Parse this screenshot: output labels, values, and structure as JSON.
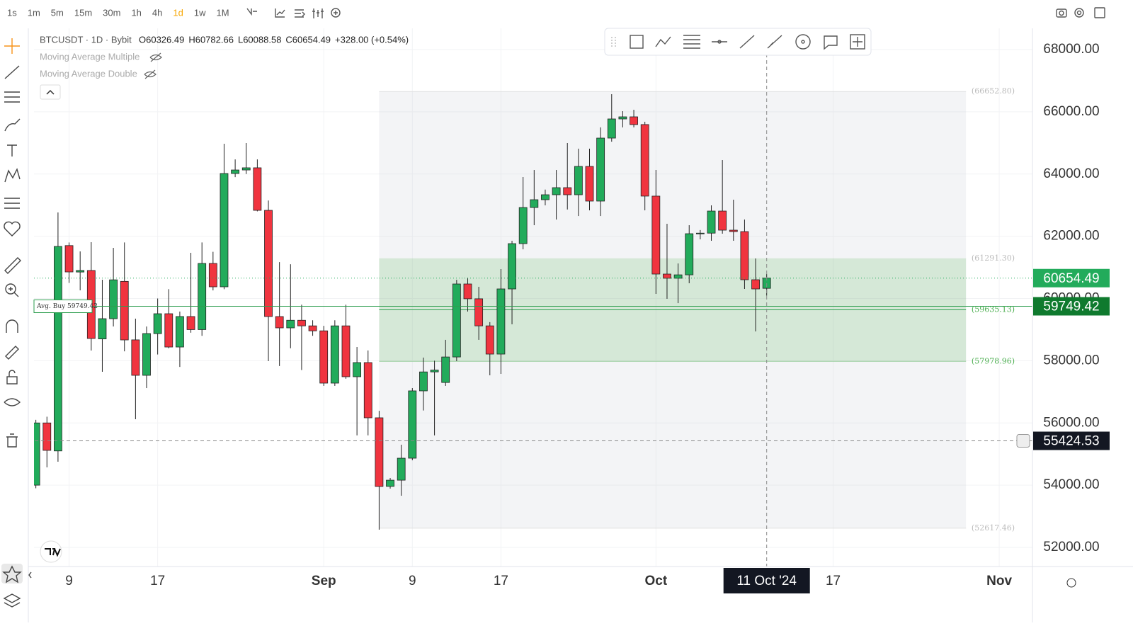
{
  "toolbar": {
    "intervals": [
      "1s",
      "1m",
      "5m",
      "15m",
      "30m",
      "1h",
      "4h",
      "1d",
      "1w",
      "1M"
    ],
    "active": "1d"
  },
  "legend": {
    "symbol": "BTCUSDT · 1D · Bybit",
    "ohlc": [
      "O60326.49",
      "H60782.66",
      "L60088.58",
      "C60654.49",
      "+328.00 (+0.54%)"
    ],
    "indicators": [
      "Moving Average Multiple",
      "Moving Average Double"
    ]
  },
  "chart_data": {
    "type": "candlestick",
    "up_color": "#22ab5b",
    "down_color": "#f0343f",
    "x": [
      "2024-08-06",
      "2024-08-07",
      "2024-08-08",
      "2024-08-09",
      "2024-08-10",
      "2024-08-11",
      "2024-08-12",
      "2024-08-13",
      "2024-08-14",
      "2024-08-15",
      "2024-08-16",
      "2024-08-17",
      "2024-08-18",
      "2024-08-19",
      "2024-08-20",
      "2024-08-21",
      "2024-08-22",
      "2024-08-23",
      "2024-08-24",
      "2024-08-25",
      "2024-08-26",
      "2024-08-27",
      "2024-08-28",
      "2024-08-29",
      "2024-08-30",
      "2024-08-31",
      "2024-09-01",
      "2024-09-02",
      "2024-09-03",
      "2024-09-04",
      "2024-09-05",
      "2024-09-06",
      "2024-09-07",
      "2024-09-08",
      "2024-09-09",
      "2024-09-10",
      "2024-09-11",
      "2024-09-12",
      "2024-09-13",
      "2024-09-14",
      "2024-09-15",
      "2024-09-16",
      "2024-09-17",
      "2024-09-18",
      "2024-09-19",
      "2024-09-20",
      "2024-09-21",
      "2024-09-22",
      "2024-09-23",
      "2024-09-24",
      "2024-09-25",
      "2024-09-26",
      "2024-09-27",
      "2024-09-28",
      "2024-09-29",
      "2024-09-30",
      "2024-10-01",
      "2024-10-02",
      "2024-10-03",
      "2024-10-04",
      "2024-10-05",
      "2024-10-06",
      "2024-10-07",
      "2024-10-08",
      "2024-10-09",
      "2024-10-10",
      "2024-10-11"
    ],
    "open": [
      54000,
      56000,
      55100,
      61700,
      60850,
      60900,
      58700,
      59350,
      60550,
      58670,
      57530,
      58870,
      59510,
      58440,
      59420,
      59000,
      61126,
      60375,
      64017,
      64130,
      64200,
      62833,
      59419,
      59055,
      59300,
      59120,
      58960,
      57280,
      59120,
      57485,
      57940,
      56165,
      53960,
      54160,
      54867,
      57030,
      57640,
      57300,
      58120,
      60466,
      59990,
      59120,
      58213,
      60307,
      61763,
      62924,
      63175,
      63334,
      63562,
      63334,
      64245,
      63130,
      65155,
      65770,
      65838,
      65590,
      63290,
      60785,
      60650,
      60760,
      62080,
      62100,
      62810,
      62196,
      62150,
      60603,
      60326.49
    ],
    "high": [
      56100,
      56200,
      62765,
      61800,
      61513,
      61809,
      60603,
      61627,
      61800,
      59350,
      59100,
      60000,
      60300,
      59580,
      61468,
      61800,
      61500,
      64973,
      64470,
      64996,
      64470,
      63150,
      61170,
      61100,
      59800,
      59300,
      59120,
      59300,
      59800,
      58440,
      58330,
      56390,
      54230,
      55300,
      57120,
      58100,
      58000,
      58670,
      60600,
      60670,
      60375,
      59240,
      60944,
      61855,
      63903,
      64130,
      63500,
      64130,
      64996,
      64815,
      64815,
      65500,
      66566,
      66020,
      66066,
      65680,
      64130,
      62400,
      61126,
      62355,
      62200,
      62993,
      64449,
      63175,
      62538,
      61286,
      60782.66
    ],
    "low": [
      53900,
      54571,
      54754,
      60500,
      60262,
      58327,
      57644,
      59100,
      58300,
      56119,
      57120,
      58200,
      58400,
      57800,
      58900,
      58800,
      60260,
      60300,
      63900,
      64000,
      62800,
      57985,
      57830,
      58400,
      57700,
      58800,
      57190,
      57190,
      57420,
      55600,
      55600,
      52569,
      53890,
      53660,
      54800,
      56400,
      55600,
      57190,
      57985,
      59580,
      58670,
      57530,
      57576,
      59170,
      61580,
      62355,
      62993,
      62538,
      62860,
      62650,
      62833,
      62650,
      65040,
      65500,
      65500,
      62833,
      60148,
      59990,
      59850,
      60490,
      61900,
      61855,
      62082,
      61855,
      60307,
      58941,
      60088.58
    ],
    "close": [
      56000,
      55118,
      61673,
      60853,
      60900,
      58714,
      59351,
      60600,
      58668,
      57530,
      58873,
      59510,
      58440,
      59420,
      59000,
      61126,
      60375,
      64017,
      64130,
      64200,
      62833,
      59419,
      59055,
      59300,
      59120,
      58960,
      57280,
      59120,
      57485,
      57940,
      56165,
      53957,
      54160,
      54867,
      57030,
      57640,
      57700,
      58120,
      60466,
      59990,
      59120,
      58213,
      60307,
      61763,
      62924,
      63175,
      63334,
      63562,
      63334,
      64245,
      63130,
      65155,
      65770,
      65838,
      65590,
      63290,
      60785,
      60650,
      60760,
      62082,
      62100,
      62810,
      62196,
      62150,
      60603,
      60307,
      60654.49
    ],
    "xlim": [
      "2024-08-05",
      "2024-11-04"
    ],
    "xticks": [
      {
        "value": "2024-08-09",
        "label": "9"
      },
      {
        "value": "2024-08-17",
        "label": "17"
      },
      {
        "value": "2024-09-01",
        "label": "Sep"
      },
      {
        "value": "2024-09-09",
        "label": "9"
      },
      {
        "value": "2024-09-17",
        "label": "17"
      },
      {
        "value": "2024-10-01",
        "label": "Oct"
      },
      {
        "value": "2024-10-17",
        "label": "17"
      },
      {
        "value": "2024-11-01",
        "label": "Nov"
      }
    ],
    "ylim": [
      51385,
      68683
    ],
    "yticks": [
      {
        "value": 52000,
        "label": "52000.00"
      },
      {
        "value": 54000,
        "label": "54000.00"
      },
      {
        "value": 56000,
        "label": "56000.00"
      },
      {
        "value": 58000,
        "label": "58000.00"
      },
      {
        "value": 60000,
        "label": "60000.00"
      },
      {
        "value": 62000,
        "label": "62000.00"
      },
      {
        "value": 64000,
        "label": "64000.00"
      },
      {
        "value": 66000,
        "label": "66000.00"
      },
      {
        "value": 68000,
        "label": "68000.00"
      }
    ],
    "grid": true,
    "last_price": 60654.49,
    "avg_buy": {
      "value": 59749.42,
      "label": "Avg. Buy 59749.42"
    },
    "position": {
      "start": "2024-09-06",
      "end": "2024-10-29",
      "levels": [
        {
          "value": 66652.8,
          "label": "(66652.80)"
        },
        {
          "value": 61291.3,
          "label": "(61291.30)"
        },
        {
          "value": 59635.13,
          "label": "(59635.13)"
        },
        {
          "value": 57978.96,
          "label": "(57978.96)"
        },
        {
          "value": 52617.46,
          "label": "(52617.46)"
        }
      ]
    },
    "crosshair": {
      "price": 55424.53,
      "date": "2024-10-11",
      "date_label": "11 Oct '24"
    }
  }
}
